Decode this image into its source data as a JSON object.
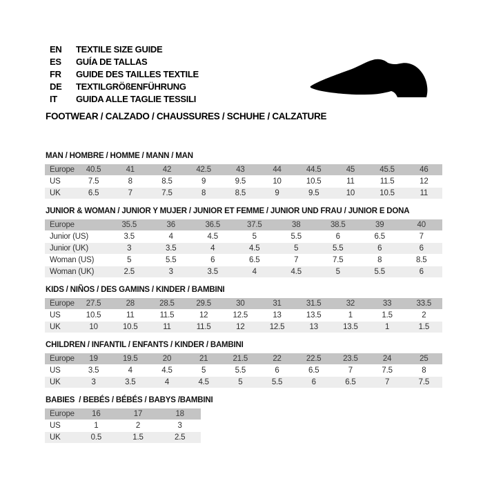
{
  "header": {
    "languages": [
      {
        "code": "EN",
        "label": "TEXTILE SIZE GUIDE"
      },
      {
        "code": "ES",
        "label": "GUÍA DE TALLAS"
      },
      {
        "code": "FR",
        "label": "GUIDE DES TAILLES TEXTILE"
      },
      {
        "code": "DE",
        "label": "TEXTILGRÖßENFÜHRUNG"
      },
      {
        "code": "IT",
        "label": "GUIDA ALLE TAGLIE TESSILI"
      }
    ],
    "category_title": "FOOTWEAR / CALZADO / CHAUSSURES / SCHUHE / CALZATURE",
    "shoe_icon": "dress-shoe-silhouette-icon",
    "shoe_icon_color": "#000000"
  },
  "colors": {
    "background": "#ffffff",
    "header_row_bg": "#c4c4c4",
    "stripe_row_bg": "#ededed",
    "plain_row_bg": "#ffffff",
    "cell_text": "#2e2e2e",
    "title_text": "#111111"
  },
  "size_tables": [
    {
      "title": "MAN / HOMBRE / HOMME / MANN / MAN",
      "rows": [
        {
          "label": "Europe",
          "values": [
            "40.5",
            "41",
            "42",
            "42.5",
            "43",
            "44",
            "44.5",
            "45",
            "45.5",
            "46"
          ]
        },
        {
          "label": "US",
          "values": [
            "7.5",
            "8",
            "8.5",
            "9",
            "9.5",
            "10",
            "10.5",
            "11",
            "11.5",
            "12"
          ]
        },
        {
          "label": "UK",
          "values": [
            "6.5",
            "7",
            "7.5",
            "8",
            "8.5",
            "9",
            "9.5",
            "10",
            "10.5",
            "11"
          ]
        }
      ]
    },
    {
      "title": "JUNIOR & WOMAN / JUNIOR Y MUJER / JUNIOR ET FEMME / JUNIOR UND FRAU / JUNIOR E DONA",
      "rows": [
        {
          "label": "Europe",
          "values": [
            "35.5",
            "36",
            "36.5",
            "37.5",
            "38",
            "38.5",
            "39",
            "40"
          ]
        },
        {
          "label": "Junior (US)",
          "values": [
            "3.5",
            "4",
            "4.5",
            "5",
            "5.5",
            "6",
            "6.5",
            "7"
          ]
        },
        {
          "label": "Junior (UK)",
          "values": [
            "3",
            "3.5",
            "4",
            "4.5",
            "5",
            "5.5",
            "6",
            "6"
          ]
        },
        {
          "label": "Woman (US)",
          "values": [
            "5",
            "5.5",
            "6",
            "6.5",
            "7",
            "7.5",
            "8",
            "8.5"
          ]
        },
        {
          "label": "Woman (UK)",
          "values": [
            "2.5",
            "3",
            "3.5",
            "4",
            "4.5",
            "5",
            "5.5",
            "6"
          ]
        }
      ]
    },
    {
      "title": "KIDS / NIÑOS / DES GAMINS / KINDER / BAMBINI",
      "rows": [
        {
          "label": "Europe",
          "values": [
            "27.5",
            "28",
            "28.5",
            "29.5",
            "30",
            "31",
            "31.5",
            "32",
            "33",
            "33.5"
          ]
        },
        {
          "label": "US",
          "values": [
            "10.5",
            "11",
            "11.5",
            "12",
            "12.5",
            "13",
            "13.5",
            "1",
            "1.5",
            "2"
          ]
        },
        {
          "label": "UK",
          "values": [
            "10",
            "10.5",
            "11",
            "11.5",
            "12",
            "12.5",
            "13",
            "13.5",
            "1",
            "1.5"
          ]
        }
      ]
    },
    {
      "title": "CHILDREN / INFANTIL / ENFANTS / KINDER / BAMBINI",
      "rows": [
        {
          "label": "Europe",
          "values": [
            "19",
            "19.5",
            "20",
            "21",
            "21.5",
            "22",
            "22.5",
            "23.5",
            "24",
            "25"
          ]
        },
        {
          "label": "US",
          "values": [
            "3.5",
            "4",
            "4.5",
            "5",
            "5.5",
            "6",
            "6.5",
            "7",
            "7.5",
            "8"
          ]
        },
        {
          "label": "UK",
          "values": [
            "3",
            "3.5",
            "4",
            "4.5",
            "5",
            "5.5",
            "6",
            "6.5",
            "7",
            "7.5"
          ]
        }
      ]
    },
    {
      "title": "BABIES  / BEBÉS / BÉBÉS / BABYS /BAMBINI",
      "rows": [
        {
          "label": "Europe",
          "values": [
            "16",
            "17",
            "18"
          ]
        },
        {
          "label": "US",
          "values": [
            "1",
            "2",
            "3"
          ]
        },
        {
          "label": "UK",
          "values": [
            "0.5",
            "1.5",
            "2.5"
          ]
        }
      ]
    }
  ]
}
